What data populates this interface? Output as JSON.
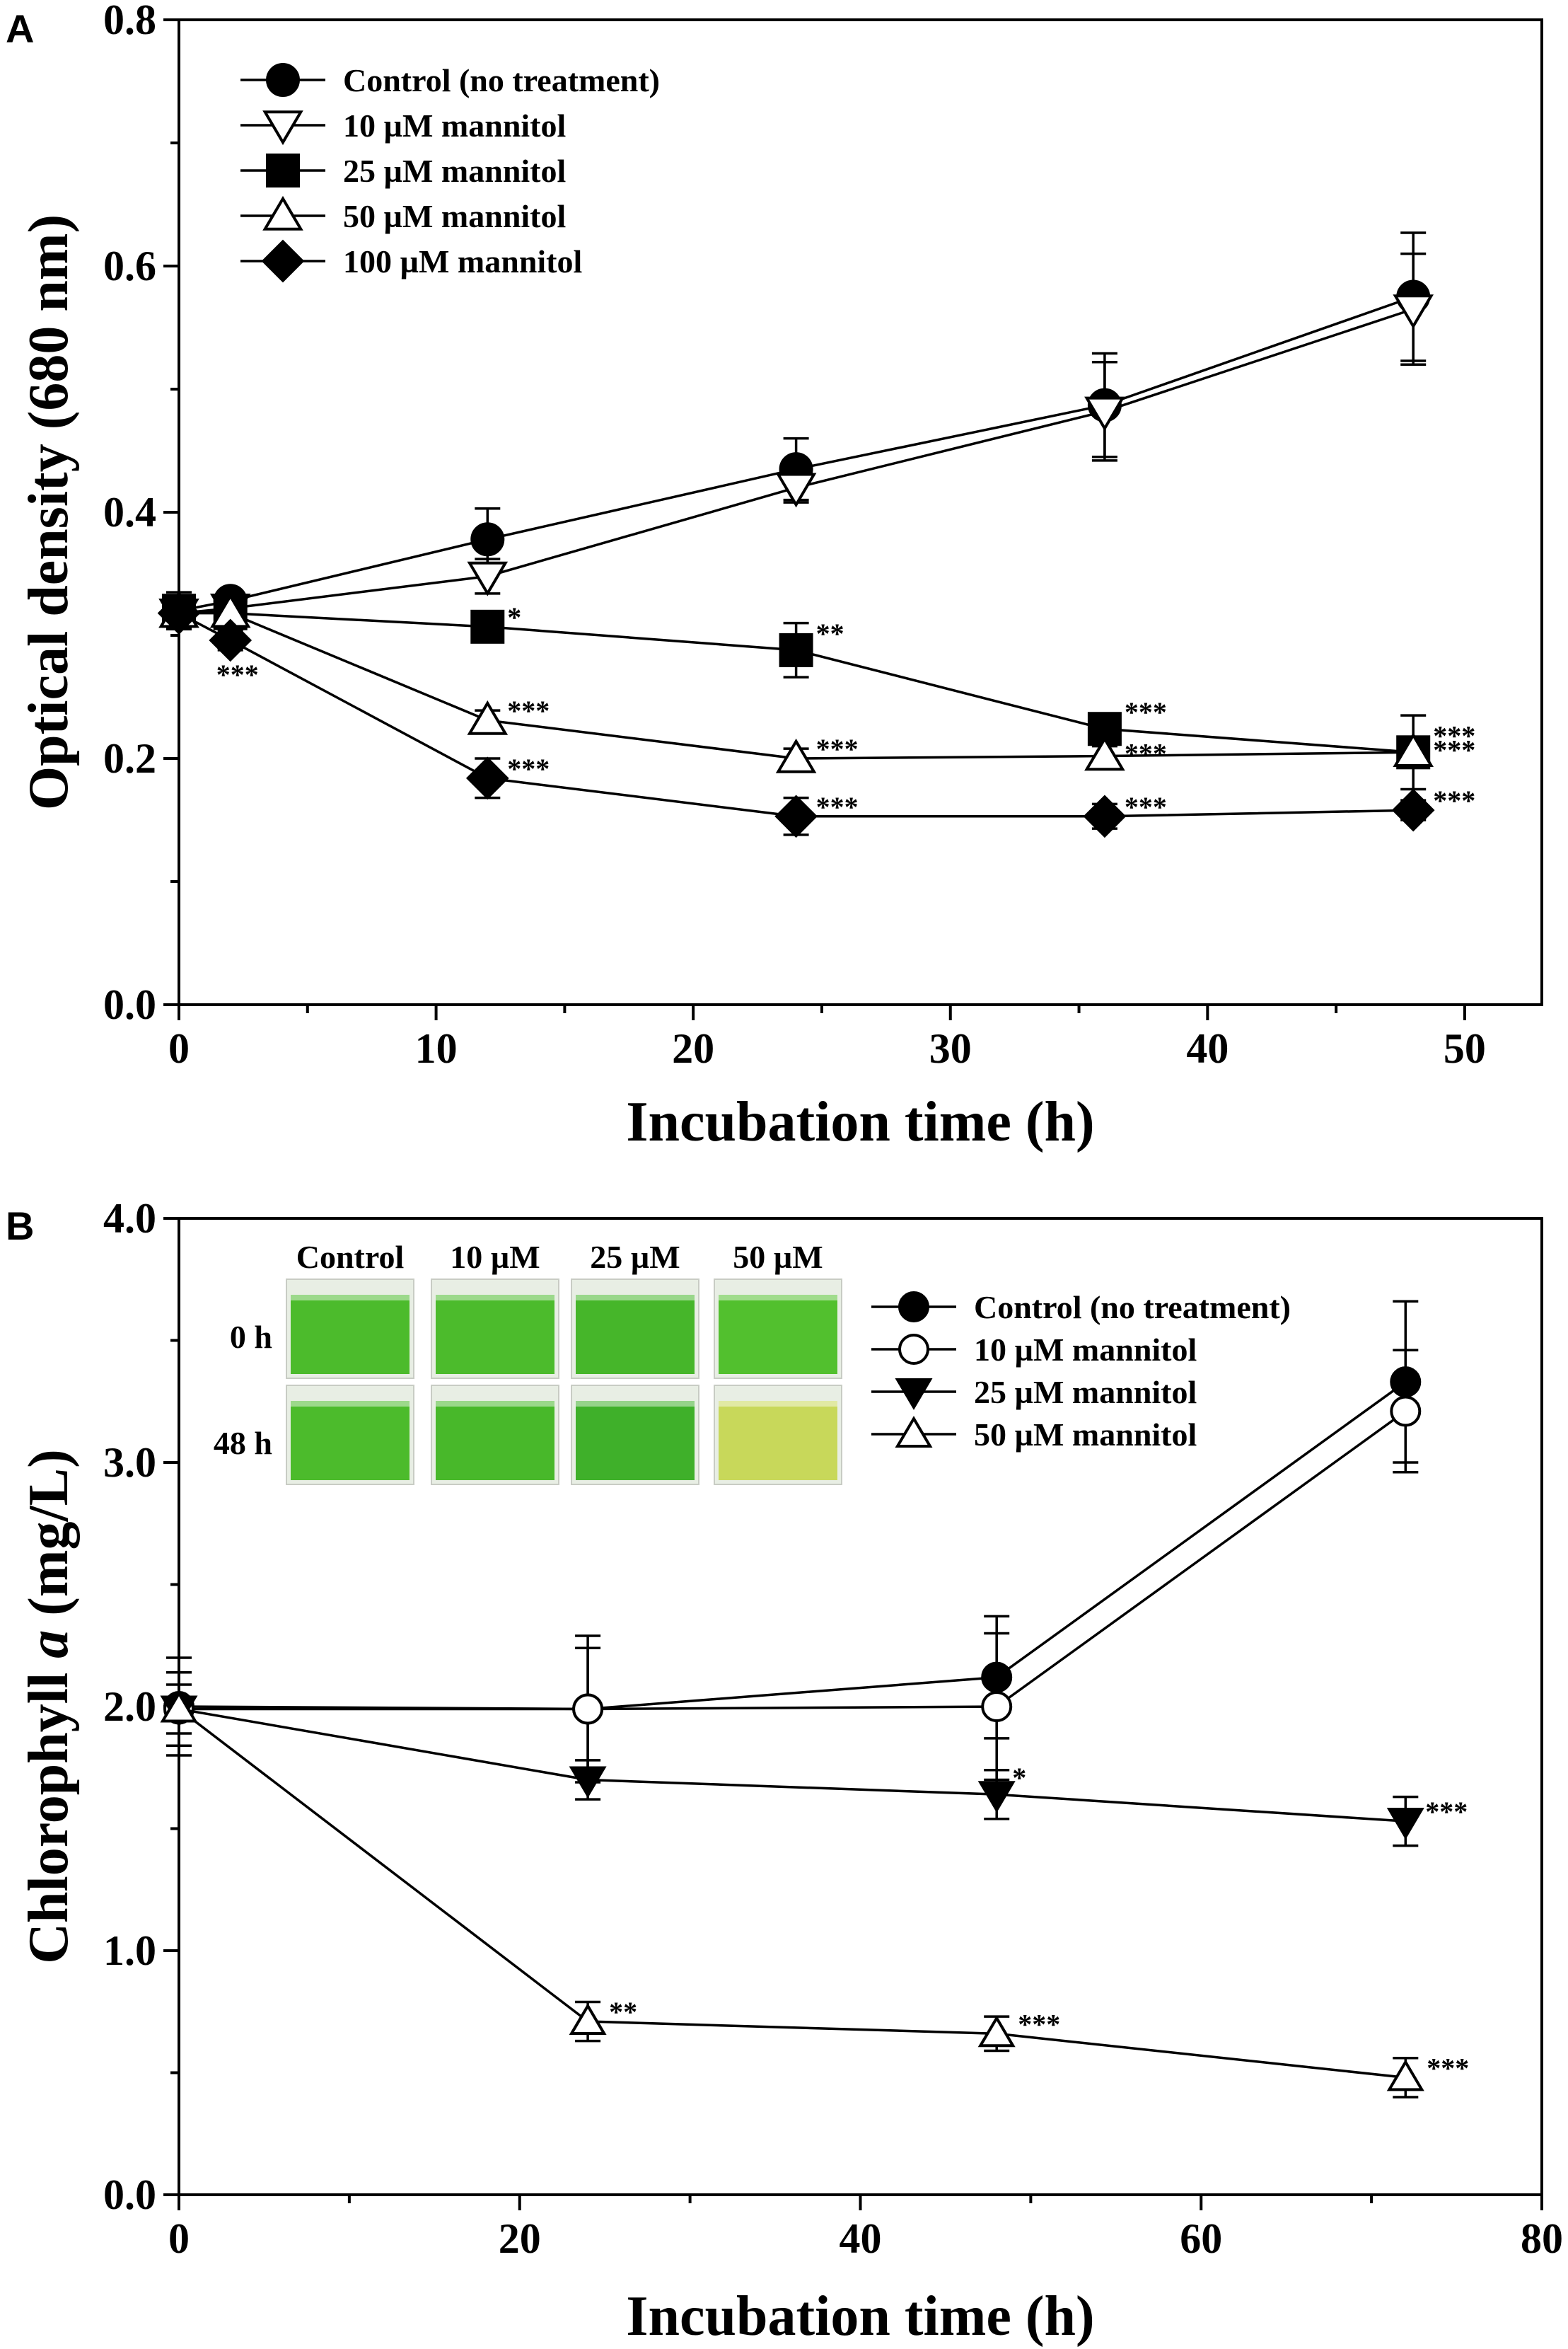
{
  "chart_data": [
    {
      "panel": "A",
      "type": "line",
      "xlabel": "Incubation time (h)",
      "ylabel": "Optical density (680 nm)",
      "xlim": [
        0,
        53
      ],
      "ylim": [
        0,
        0.8
      ],
      "xticks": [
        "0",
        "10",
        "20",
        "30",
        "40",
        "50"
      ],
      "yticks": [
        "0.0",
        "0.2",
        "0.4",
        "0.6",
        "0.8"
      ],
      "legend_position": "top-left",
      "series": [
        {
          "name": "Control (no treatment)",
          "marker": "circle",
          "fill": "#000000",
          "x": [
            0,
            2,
            12,
            24,
            36,
            48
          ],
          "values": [
            0.32,
            0.328,
            0.378,
            0.435,
            0.487,
            0.575
          ],
          "err": [
            0.015,
            0.008,
            0.025,
            0.025,
            0.042,
            0.052
          ],
          "sig": [
            "",
            "",
            "",
            "",
            "",
            ""
          ]
        },
        {
          "name": "10 µM mannitol",
          "marker": "triangle-down",
          "fill": "#ffffff",
          "x": [
            0,
            2,
            12,
            24,
            36,
            48
          ],
          "values": [
            0.318,
            0.322,
            0.348,
            0.42,
            0.482,
            0.565
          ],
          "err": [
            0.012,
            0.008,
            0.014,
            0.012,
            0.04,
            0.045
          ],
          "sig": [
            "",
            "",
            "",
            "",
            "",
            ""
          ]
        },
        {
          "name": "25 µM mannitol",
          "marker": "square",
          "fill": "#000000",
          "x": [
            0,
            2,
            12,
            24,
            36,
            48
          ],
          "values": [
            0.32,
            0.318,
            0.307,
            0.288,
            0.224,
            0.205
          ],
          "err": [
            0.012,
            0.008,
            0.008,
            0.022,
            0.01,
            0.03
          ],
          "sig": [
            "",
            "",
            "*",
            "**",
            "***",
            "***"
          ]
        },
        {
          "name": "50 µM mannitol",
          "marker": "triangle-up",
          "fill": "#ffffff",
          "x": [
            0,
            2,
            12,
            24,
            36,
            48
          ],
          "values": [
            0.318,
            0.318,
            0.231,
            0.2,
            0.202,
            0.205
          ],
          "err": [
            0.012,
            0.008,
            0.008,
            0.008,
            0.008,
            0.008
          ],
          "sig": [
            "",
            "",
            "***",
            "***",
            "***",
            "***"
          ]
        },
        {
          "name": "100 µM mannitol",
          "marker": "diamond",
          "fill": "#000000",
          "x": [
            0,
            2,
            12,
            24,
            36,
            48
          ],
          "values": [
            0.318,
            0.296,
            0.184,
            0.153,
            0.153,
            0.158
          ],
          "err": [
            0.012,
            0.008,
            0.016,
            0.015,
            0.01,
            0.008
          ],
          "sig": [
            "",
            "***",
            "***",
            "***",
            "***",
            "***"
          ]
        }
      ]
    },
    {
      "panel": "B",
      "type": "line",
      "xlabel": "Incubation time (h)",
      "ylabel_main": "Chlorophyll ",
      "ylabel_italic": "a",
      "ylabel_unit": " (mg/L)",
      "xlim": [
        0,
        80
      ],
      "ylim": [
        0,
        4.0
      ],
      "xticks": [
        "0",
        "20",
        "40",
        "60",
        "80"
      ],
      "yticks": [
        "0.0",
        "1.0",
        "2.0",
        "3.0",
        "4.0"
      ],
      "legend_position": "top-right",
      "series": [
        {
          "name": "Control (no treatment)",
          "marker": "circle",
          "fill": "#000000",
          "x": [
            0,
            24,
            48,
            72
          ],
          "values": [
            2.0,
            1.99,
            2.12,
            3.33
          ],
          "err": [
            0.2,
            0.3,
            0.25,
            0.33
          ],
          "sig": [
            "",
            "",
            "",
            ""
          ]
        },
        {
          "name": "10 µM mannitol",
          "marker": "circle",
          "fill": "#ffffff",
          "x": [
            0,
            24,
            48,
            72
          ],
          "values": [
            1.99,
            1.99,
            2.0,
            3.21
          ],
          "err": [
            0.15,
            0.25,
            0.3,
            0.25
          ],
          "sig": [
            "",
            "",
            "",
            ""
          ]
        },
        {
          "name": "25 µM mannitol",
          "marker": "triangle-down",
          "fill": "#000000",
          "x": [
            0,
            24,
            48,
            72
          ],
          "values": [
            1.99,
            1.7,
            1.64,
            1.53
          ],
          "err": [
            0.1,
            0.08,
            0.1,
            0.1
          ],
          "sig": [
            "",
            "",
            "*",
            "***"
          ]
        },
        {
          "name": "50 µM mannitol",
          "marker": "triangle-up",
          "fill": "#ffffff",
          "x": [
            0,
            24,
            48,
            72
          ],
          "values": [
            1.99,
            0.71,
            0.66,
            0.48
          ],
          "err": [
            0.05,
            0.08,
            0.07,
            0.08
          ],
          "sig": [
            "",
            "**",
            "***",
            "***"
          ]
        }
      ],
      "inset": {
        "columns": [
          "Control",
          "10 µM",
          "25 µM",
          "50 µM"
        ],
        "rows": [
          "0 h",
          "48 h"
        ],
        "colors": [
          [
            "#4cbb2c",
            "#4cbb2c",
            "#46b62a",
            "#52c02e"
          ],
          [
            "#4cbb2c",
            "#48b82a",
            "#3fb02a",
            "#c8d85a"
          ]
        ]
      }
    }
  ]
}
